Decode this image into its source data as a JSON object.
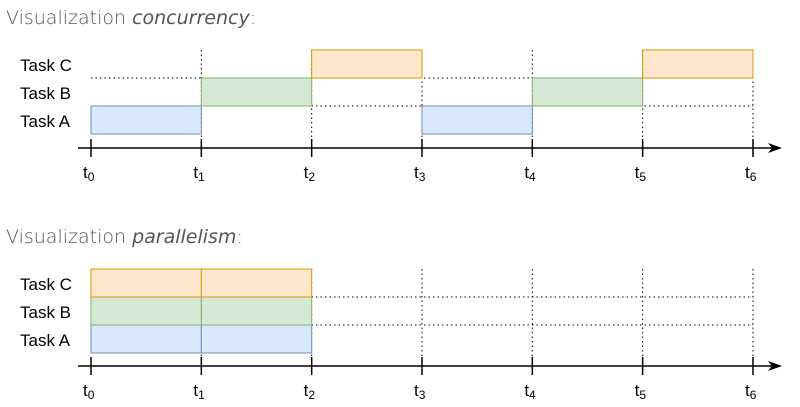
{
  "colors": {
    "task_a": {
      "fill": "#dae8fc",
      "stroke": "#6c8ebf"
    },
    "task_b": {
      "fill": "#d5e8d4",
      "stroke": "#82b366"
    },
    "task_c": {
      "fill": "#ffe6cc",
      "stroke": "#d79b00"
    },
    "axis": "#000000",
    "guide": "#000000"
  },
  "diagrams": [
    {
      "title_prefix": "Visualization ",
      "title_emphasis": "concurrency",
      "title_suffix": ":",
      "tasks": [
        "Task C",
        "Task B",
        "Task A"
      ],
      "ticks": [
        "0",
        "1",
        "2",
        "3",
        "4",
        "5",
        "6"
      ],
      "tick_prefix": "t",
      "segments": [
        {
          "task": "Task A",
          "start": 0,
          "end": 1
        },
        {
          "task": "Task B",
          "start": 1,
          "end": 2
        },
        {
          "task": "Task C",
          "start": 2,
          "end": 3
        },
        {
          "task": "Task A",
          "start": 3,
          "end": 4
        },
        {
          "task": "Task B",
          "start": 4,
          "end": 5
        },
        {
          "task": "Task C",
          "start": 5,
          "end": 6
        }
      ]
    },
    {
      "title_prefix": "Visualization ",
      "title_emphasis": "parallelism",
      "title_suffix": ":",
      "tasks": [
        "Task C",
        "Task B",
        "Task A"
      ],
      "ticks": [
        "0",
        "1",
        "2",
        "3",
        "4",
        "5",
        "6"
      ],
      "tick_prefix": "t",
      "segments": [
        {
          "task": "Task A",
          "start": 0,
          "end": 1
        },
        {
          "task": "Task A",
          "start": 1,
          "end": 2
        },
        {
          "task": "Task B",
          "start": 0,
          "end": 1
        },
        {
          "task": "Task B",
          "start": 1,
          "end": 2
        },
        {
          "task": "Task C",
          "start": 0,
          "end": 1
        },
        {
          "task": "Task C",
          "start": 1,
          "end": 2
        }
      ]
    }
  ]
}
